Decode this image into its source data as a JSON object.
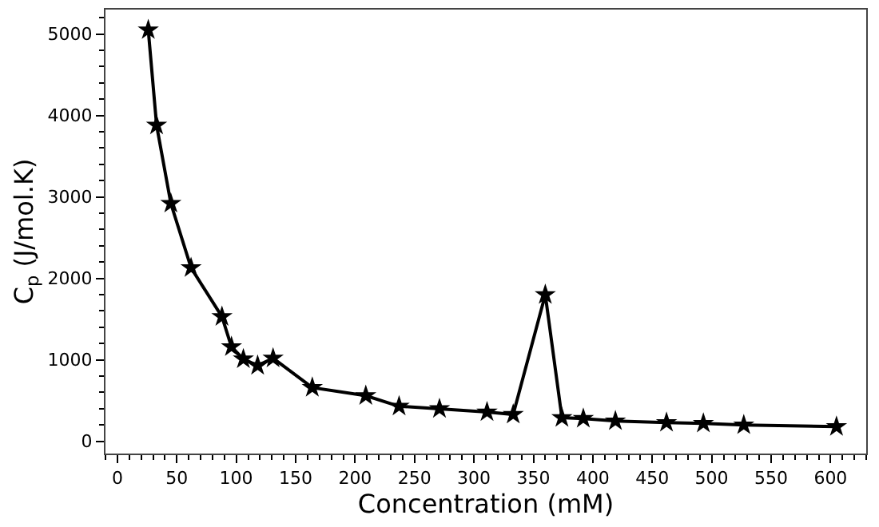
{
  "chart_data": {
    "type": "line",
    "xlabel": "Concentration (mM)",
    "ylabel": "C$_{p}$ (J/mol.K)",
    "x": [
      26,
      33,
      45,
      62,
      88,
      96,
      106,
      118,
      131,
      164,
      209,
      237,
      271,
      311,
      333,
      360,
      374,
      392,
      419,
      462,
      493,
      527,
      605
    ],
    "series": [
      {
        "color": "#000000",
        "values": [
          5050,
          3880,
          2920,
          2130,
          1530,
          1160,
          1010,
          930,
          1020,
          660,
          560,
          430,
          400,
          360,
          330,
          1800,
          290,
          280,
          250,
          230,
          220,
          200,
          180
        ]
      }
    ],
    "xlim": [
      -10,
      630
    ],
    "xticks": [
      0,
      50,
      100,
      150,
      200,
      250,
      300,
      350,
      400,
      450,
      500,
      550,
      600
    ],
    "ylim": [
      -150,
      5300
    ],
    "yticks": [
      0,
      1000,
      2000,
      3000,
      4000,
      5000
    ],
    "marker": "star",
    "line_style": "solid"
  }
}
